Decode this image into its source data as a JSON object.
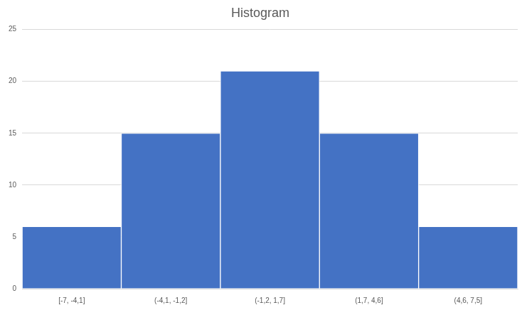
{
  "chart_data": {
    "type": "histogram",
    "title": "Histogram",
    "categories": [
      "[-7, -4,1]",
      "(-4,1, -1,2]",
      "(-1,2, 1,7]",
      "(1,7, 4,6]",
      "(4,6, 7,5]"
    ],
    "values": [
      6,
      15,
      21,
      15,
      6
    ],
    "color": "#4472c4",
    "ylim": [
      0,
      25
    ],
    "yticks": [
      0,
      5,
      10,
      15,
      20,
      25
    ],
    "grid": true
  }
}
